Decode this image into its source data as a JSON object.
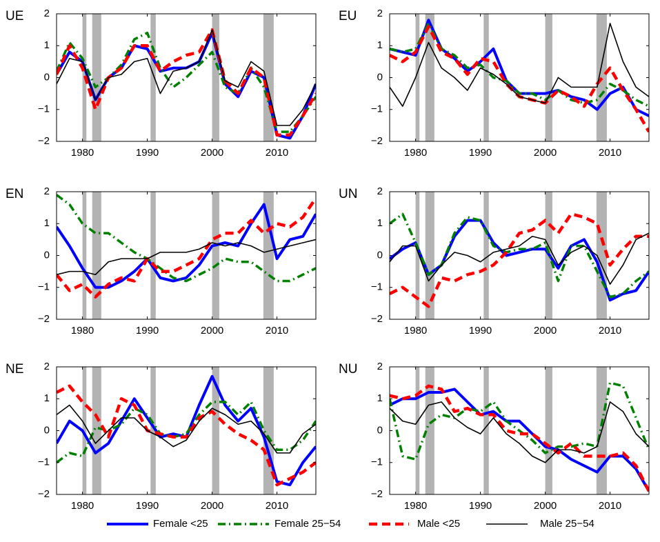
{
  "chart_data": [
    {
      "type": "line",
      "title": "UE",
      "x": [
        1976,
        1978,
        1980,
        1982,
        1984,
        1986,
        1988,
        1990,
        1992,
        1994,
        1996,
        1998,
        2000,
        2002,
        2004,
        2006,
        2008,
        2010,
        2012,
        2014,
        2016
      ],
      "xlim": [
        1976,
        2016
      ],
      "xticks": [
        1980,
        1990,
        2000,
        2010
      ],
      "ylim": [
        -2,
        2
      ],
      "yticks": [
        {
          "value": -2,
          "label": "−2"
        },
        {
          "value": -1,
          "label": "−1"
        },
        0,
        1,
        2
      ],
      "shaded_x": [
        [
          1980.0,
          1980.6
        ],
        [
          1981.5,
          1982.9
        ],
        [
          1990.5,
          1991.3
        ],
        [
          2000.0,
          2001.1
        ],
        [
          2007.9,
          2009.5
        ]
      ],
      "shade_color": "#b3b3b3",
      "series": [
        {
          "name": "Female <25",
          "color": "#0000ff",
          "line_style": "solid",
          "values": [
            0.1,
            0.8,
            0.5,
            -0.7,
            0.0,
            0.3,
            1.0,
            0.9,
            0.2,
            0.3,
            0.3,
            0.5,
            1.4,
            -0.2,
            -0.6,
            0.2,
            0.0,
            -1.8,
            -1.9,
            -1.2,
            -0.2
          ]
        },
        {
          "name": "Female 25−54",
          "color": "#008000",
          "line_style": "dashdot",
          "values": [
            0.2,
            1.1,
            0.6,
            -0.3,
            0.0,
            0.4,
            1.2,
            1.4,
            0.3,
            -0.3,
            0.0,
            0.4,
            0.8,
            -0.3,
            -0.5,
            0.3,
            -0.3,
            -1.7,
            -1.7,
            -1.2,
            -0.6
          ]
        },
        {
          "name": "Male <25",
          "color": "#ff0000",
          "line_style": "dashed",
          "values": [
            0.1,
            1.0,
            0.3,
            -1.0,
            0.0,
            0.3,
            1.0,
            1.0,
            0.2,
            0.5,
            0.7,
            0.8,
            1.5,
            -0.1,
            -0.5,
            0.3,
            0.0,
            -1.8,
            -1.8,
            -1.2,
            -0.5
          ]
        },
        {
          "name": "Male 25−54",
          "color": "#000000",
          "line_style": "thin",
          "values": [
            -0.2,
            0.6,
            0.5,
            -0.7,
            0.0,
            0.1,
            0.5,
            0.6,
            -0.5,
            0.2,
            0.3,
            0.5,
            1.5,
            -0.1,
            -0.3,
            0.5,
            0.2,
            -1.5,
            -1.5,
            -1.0,
            -0.2
          ]
        }
      ]
    },
    {
      "type": "line",
      "title": "EU",
      "x": [
        1976,
        1978,
        1980,
        1982,
        1984,
        1986,
        1988,
        1990,
        1992,
        1994,
        1996,
        1998,
        2000,
        2002,
        2004,
        2006,
        2008,
        2010,
        2012,
        2014,
        2016
      ],
      "xlim": [
        1976,
        2016
      ],
      "xticks": [
        1980,
        1990,
        2000,
        2010
      ],
      "ylim": [
        -2,
        2
      ],
      "yticks": [
        {
          "value": -2,
          "label": "−2"
        },
        {
          "value": -1,
          "label": "−1"
        },
        0,
        1,
        2
      ],
      "shaded_x": [
        [
          1980.0,
          1980.6
        ],
        [
          1981.5,
          1982.9
        ],
        [
          1990.5,
          1991.3
        ],
        [
          2000.0,
          2001.1
        ],
        [
          2007.9,
          2009.5
        ]
      ],
      "shade_color": "#b3b3b3",
      "series": [
        {
          "name": "Female <25",
          "color": "#0000ff",
          "line_style": "solid",
          "values": [
            0.9,
            0.8,
            0.7,
            1.8,
            0.9,
            0.6,
            0.2,
            0.5,
            0.9,
            -0.1,
            -0.5,
            -0.5,
            -0.5,
            -0.4,
            -0.6,
            -0.7,
            -1.0,
            -0.5,
            -0.3,
            -1.0,
            -1.2
          ]
        },
        {
          "name": "Female 25−54",
          "color": "#008000",
          "line_style": "dashdot",
          "values": [
            0.9,
            0.8,
            0.9,
            1.7,
            0.9,
            0.7,
            0.3,
            0.4,
            0.0,
            -0.1,
            -0.5,
            -0.5,
            -0.7,
            -0.4,
            -0.7,
            -0.8,
            -0.7,
            -0.2,
            -0.4,
            -0.7,
            -0.9
          ]
        },
        {
          "name": "Male <25",
          "color": "#ff0000",
          "line_style": "dashed",
          "values": [
            0.7,
            0.5,
            0.8,
            1.6,
            0.8,
            0.6,
            0.1,
            0.6,
            0.5,
            -0.2,
            -0.6,
            -0.7,
            -0.8,
            -0.4,
            -0.6,
            -0.9,
            -0.2,
            0.3,
            -0.4,
            -1.0,
            -1.7
          ]
        },
        {
          "name": "Male 25−54",
          "color": "#000000",
          "line_style": "thin",
          "values": [
            -0.3,
            -0.9,
            0.0,
            1.1,
            0.3,
            0.0,
            -0.4,
            0.3,
            0.1,
            -0.2,
            -0.6,
            -0.7,
            -0.8,
            0.0,
            -0.3,
            -0.3,
            -0.3,
            1.7,
            0.5,
            -0.3,
            -0.6
          ]
        }
      ]
    },
    {
      "type": "line",
      "title": "EN",
      "x": [
        1976,
        1978,
        1980,
        1982,
        1984,
        1986,
        1988,
        1990,
        1992,
        1994,
        1996,
        1998,
        2000,
        2002,
        2004,
        2006,
        2008,
        2010,
        2012,
        2014,
        2016
      ],
      "xlim": [
        1976,
        2016
      ],
      "xticks": [
        1980,
        1990,
        2000,
        2010
      ],
      "ylim": [
        -2,
        2
      ],
      "yticks": [
        {
          "value": -2,
          "label": "−2"
        },
        {
          "value": -1,
          "label": "−1"
        },
        0,
        1,
        2
      ],
      "shaded_x": [
        [
          1980.0,
          1980.6
        ],
        [
          1981.5,
          1982.9
        ],
        [
          1990.5,
          1991.3
        ],
        [
          2000.0,
          2001.1
        ],
        [
          2007.9,
          2009.5
        ]
      ],
      "shade_color": "#b3b3b3",
      "series": [
        {
          "name": "Female <25",
          "color": "#0000ff",
          "line_style": "solid",
          "values": [
            0.9,
            0.3,
            -0.4,
            -1.0,
            -1.0,
            -0.8,
            -0.5,
            -0.1,
            -0.7,
            -0.8,
            -0.7,
            -0.3,
            0.3,
            0.4,
            0.3,
            1.0,
            1.6,
            -0.1,
            0.5,
            0.6,
            1.3
          ]
        },
        {
          "name": "Female 25−54",
          "color": "#008000",
          "line_style": "dashdot",
          "values": [
            1.9,
            1.6,
            1.0,
            0.7,
            0.7,
            0.4,
            0.1,
            -0.1,
            -0.4,
            -0.7,
            -0.8,
            -0.6,
            -0.4,
            -0.1,
            -0.2,
            -0.2,
            -0.5,
            -0.8,
            -0.8,
            -0.6,
            -0.4
          ]
        },
        {
          "name": "Male <25",
          "color": "#ff0000",
          "line_style": "dashed",
          "values": [
            -0.6,
            -1.1,
            -0.9,
            -1.3,
            -0.9,
            -0.7,
            -0.8,
            -0.1,
            -0.5,
            -0.5,
            -0.3,
            -0.1,
            0.5,
            0.7,
            0.7,
            1.1,
            0.7,
            1.0,
            0.9,
            1.2,
            1.8
          ]
        },
        {
          "name": "Male 25−54",
          "color": "#000000",
          "line_style": "thin",
          "values": [
            -0.6,
            -0.5,
            -0.5,
            -0.6,
            -0.2,
            -0.1,
            -0.1,
            -0.1,
            0.1,
            0.1,
            0.1,
            0.2,
            0.4,
            0.3,
            0.4,
            0.3,
            0.1,
            0.2,
            0.3,
            0.4,
            0.5
          ]
        }
      ]
    },
    {
      "type": "line",
      "title": "UN",
      "x": [
        1976,
        1978,
        1980,
        1982,
        1984,
        1986,
        1988,
        1990,
        1992,
        1994,
        1996,
        1998,
        2000,
        2002,
        2004,
        2006,
        2008,
        2010,
        2012,
        2014,
        2016
      ],
      "xlim": [
        1976,
        2016
      ],
      "xticks": [
        1980,
        1990,
        2000,
        2010
      ],
      "ylim": [
        -2,
        2
      ],
      "yticks": [
        {
          "value": -2,
          "label": "−2"
        },
        {
          "value": -1,
          "label": "−1"
        },
        0,
        1,
        2
      ],
      "shaded_x": [
        [
          1980.0,
          1980.6
        ],
        [
          1981.5,
          1982.9
        ],
        [
          1990.5,
          1991.3
        ],
        [
          2000.0,
          2001.1
        ],
        [
          2007.9,
          2009.5
        ]
      ],
      "shade_color": "#b3b3b3",
      "series": [
        {
          "name": "Female <25",
          "color": "#0000ff",
          "line_style": "solid",
          "values": [
            -0.1,
            0.2,
            0.4,
            -0.6,
            -0.3,
            0.6,
            1.1,
            1.1,
            0.4,
            0.0,
            0.1,
            0.2,
            0.2,
            -0.4,
            0.3,
            0.5,
            -0.2,
            -1.4,
            -1.2,
            -1.1,
            -0.5
          ]
        },
        {
          "name": "Female 25−54",
          "color": "#008000",
          "line_style": "dashdot",
          "values": [
            1.0,
            1.3,
            0.4,
            -0.6,
            -0.3,
            0.7,
            1.2,
            1.1,
            0.3,
            0.1,
            0.2,
            0.2,
            0.4,
            -0.8,
            0.3,
            0.3,
            -0.5,
            -1.3,
            -1.2,
            -0.8,
            -0.5
          ]
        },
        {
          "name": "Male <25",
          "color": "#ff0000",
          "line_style": "dashed",
          "values": [
            -1.2,
            -1.0,
            -1.3,
            -1.6,
            -0.7,
            -0.8,
            -0.6,
            -0.5,
            -0.3,
            0.1,
            0.7,
            0.8,
            1.1,
            0.7,
            1.3,
            1.2,
            1.0,
            -0.3,
            0.2,
            0.6,
            0.6
          ]
        },
        {
          "name": "Male 25−54",
          "color": "#000000",
          "line_style": "thin",
          "values": [
            -0.2,
            0.3,
            0.3,
            -0.8,
            -0.3,
            0.1,
            0.0,
            -0.2,
            0.1,
            0.2,
            0.3,
            0.6,
            0.5,
            -0.3,
            0.1,
            0.3,
            0.0,
            -0.9,
            -0.3,
            0.5,
            0.7
          ]
        }
      ]
    },
    {
      "type": "line",
      "title": "NE",
      "x": [
        1976,
        1978,
        1980,
        1982,
        1984,
        1986,
        1988,
        1990,
        1992,
        1994,
        1996,
        1998,
        2000,
        2002,
        2004,
        2006,
        2008,
        2010,
        2012,
        2014,
        2016
      ],
      "xlim": [
        1976,
        2016
      ],
      "xticks": [
        1980,
        1990,
        2000,
        2010
      ],
      "ylim": [
        -2,
        2
      ],
      "yticks": [
        {
          "value": -2,
          "label": "−2"
        },
        {
          "value": -1,
          "label": "−1"
        },
        0,
        1,
        2
      ],
      "shaded_x": [
        [
          1980.0,
          1980.6
        ],
        [
          1981.5,
          1982.9
        ],
        [
          1990.5,
          1991.3
        ],
        [
          2000.0,
          2001.1
        ],
        [
          2007.9,
          2009.5
        ]
      ],
      "shade_color": "#b3b3b3",
      "series": [
        {
          "name": "Female <25",
          "color": "#0000ff",
          "line_style": "solid",
          "values": [
            -0.4,
            0.3,
            0.0,
            -0.7,
            -0.4,
            0.3,
            1.0,
            0.4,
            -0.2,
            -0.1,
            -0.2,
            0.8,
            1.7,
            0.8,
            0.3,
            0.7,
            -0.2,
            -1.6,
            -1.7,
            -1.0,
            -0.5
          ]
        },
        {
          "name": "Female 25−54",
          "color": "#008000",
          "line_style": "dashdot",
          "values": [
            -1.0,
            -0.7,
            -0.8,
            0.1,
            0.0,
            0.2,
            0.7,
            0.5,
            -0.1,
            -0.2,
            -0.1,
            0.5,
            0.9,
            0.9,
            0.5,
            0.9,
            0.0,
            -0.6,
            -0.6,
            -0.3,
            0.3
          ]
        },
        {
          "name": "Male <25",
          "color": "#ff0000",
          "line_style": "dashed",
          "values": [
            1.2,
            1.4,
            0.9,
            0.5,
            -0.2,
            1.0,
            0.8,
            0.0,
            -0.1,
            -0.2,
            -0.2,
            0.4,
            0.6,
            0.2,
            -0.1,
            -0.3,
            -0.6,
            -1.7,
            -1.5,
            -1.3,
            -1.0
          ]
        },
        {
          "name": "Male 25−54",
          "color": "#000000",
          "line_style": "thin",
          "values": [
            0.5,
            0.8,
            0.3,
            -0.4,
            0.0,
            0.4,
            0.4,
            0.0,
            -0.2,
            -0.5,
            -0.3,
            0.3,
            0.7,
            0.5,
            0.2,
            0.3,
            -0.1,
            -0.7,
            -0.7,
            -0.1,
            0.2
          ]
        }
      ]
    },
    {
      "type": "line",
      "title": "NU",
      "x": [
        1976,
        1978,
        1980,
        1982,
        1984,
        1986,
        1988,
        1990,
        1992,
        1994,
        1996,
        1998,
        2000,
        2002,
        2004,
        2006,
        2008,
        2010,
        2012,
        2014,
        2016
      ],
      "xlim": [
        1976,
        2016
      ],
      "xticks": [
        1980,
        1990,
        2000,
        2010
      ],
      "ylim": [
        -2,
        2
      ],
      "yticks": [
        {
          "value": -2,
          "label": "−2"
        },
        {
          "value": -1,
          "label": "−1"
        },
        0,
        1,
        2
      ],
      "shaded_x": [
        [
          1980.0,
          1980.6
        ],
        [
          1981.5,
          1982.9
        ],
        [
          1990.5,
          1991.3
        ],
        [
          2000.0,
          2001.1
        ],
        [
          2007.9,
          2009.5
        ]
      ],
      "shade_color": "#b3b3b3",
      "series": [
        {
          "name": "Female <25",
          "color": "#0000ff",
          "line_style": "solid",
          "values": [
            0.8,
            1.0,
            1.0,
            1.2,
            1.2,
            1.3,
            0.9,
            0.5,
            0.6,
            0.3,
            0.3,
            -0.1,
            -0.5,
            -0.6,
            -0.9,
            -1.1,
            -1.3,
            -0.8,
            -0.8,
            -1.2,
            -1.9
          ]
        },
        {
          "name": "Female 25−54",
          "color": "#008000",
          "line_style": "dashdot",
          "values": [
            1.0,
            -0.8,
            -0.9,
            0.2,
            0.5,
            0.4,
            0.7,
            0.6,
            0.9,
            0.3,
            0.0,
            -0.3,
            -0.7,
            -0.5,
            -0.5,
            -0.4,
            -0.5,
            1.5,
            1.4,
            0.4,
            -0.6
          ]
        },
        {
          "name": "Male <25",
          "color": "#ff0000",
          "line_style": "dashed",
          "values": [
            1.1,
            1.0,
            1.1,
            1.4,
            1.3,
            0.6,
            0.7,
            0.5,
            0.5,
            0.0,
            -0.1,
            -0.1,
            -0.4,
            -0.7,
            -0.4,
            -0.8,
            -0.8,
            -0.8,
            -0.7,
            -1.1,
            -1.9
          ]
        },
        {
          "name": "Male 25−54",
          "color": "#000000",
          "line_style": "thin",
          "values": [
            0.7,
            0.3,
            0.2,
            0.8,
            0.9,
            0.4,
            0.1,
            -0.1,
            0.4,
            -0.1,
            -0.4,
            -0.8,
            -1.0,
            -0.6,
            -0.6,
            -0.7,
            -0.5,
            0.9,
            0.6,
            -0.1,
            -0.5
          ]
        }
      ]
    }
  ]
}
